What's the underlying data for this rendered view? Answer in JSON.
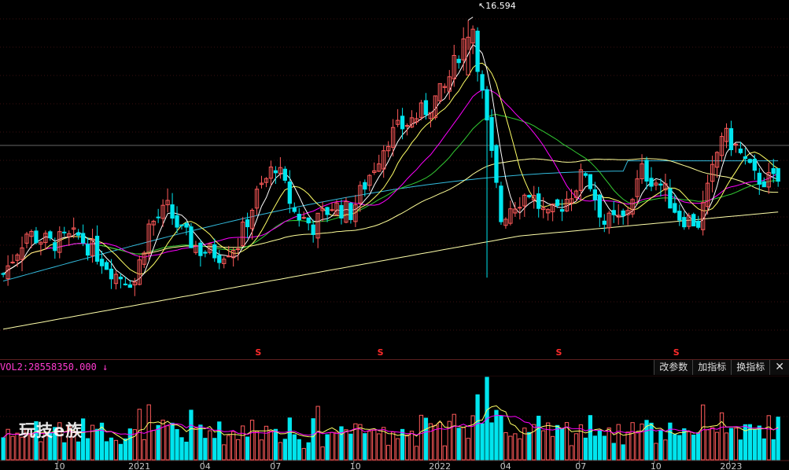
{
  "chart_data": {
    "type": "candlestick",
    "peak_annotation": "↖16.594",
    "price_range": [
      7.0,
      17.0
    ],
    "volume_indicator": {
      "label": "VOL2:28558350.000",
      "arrow": "↓",
      "buttons": [
        "改参数",
        "加指标",
        "换指标"
      ]
    },
    "x_tick_labels": [
      "10",
      "2021",
      "04",
      "07",
      "10",
      "2022",
      "04",
      "07",
      "10",
      "2023"
    ],
    "dividend_marker": "S",
    "colors": {
      "up": "#ff5a5a",
      "down": "#00e5ee",
      "ma5": "#ffffff",
      "ma10": "#ffff66",
      "ma20": "#ff00ff",
      "ma30": "#33cc33",
      "ma60": "#ffff99",
      "ma120": "#33bbdd",
      "ma250": "#ffffaa"
    }
  },
  "watermark": "玩技e族"
}
